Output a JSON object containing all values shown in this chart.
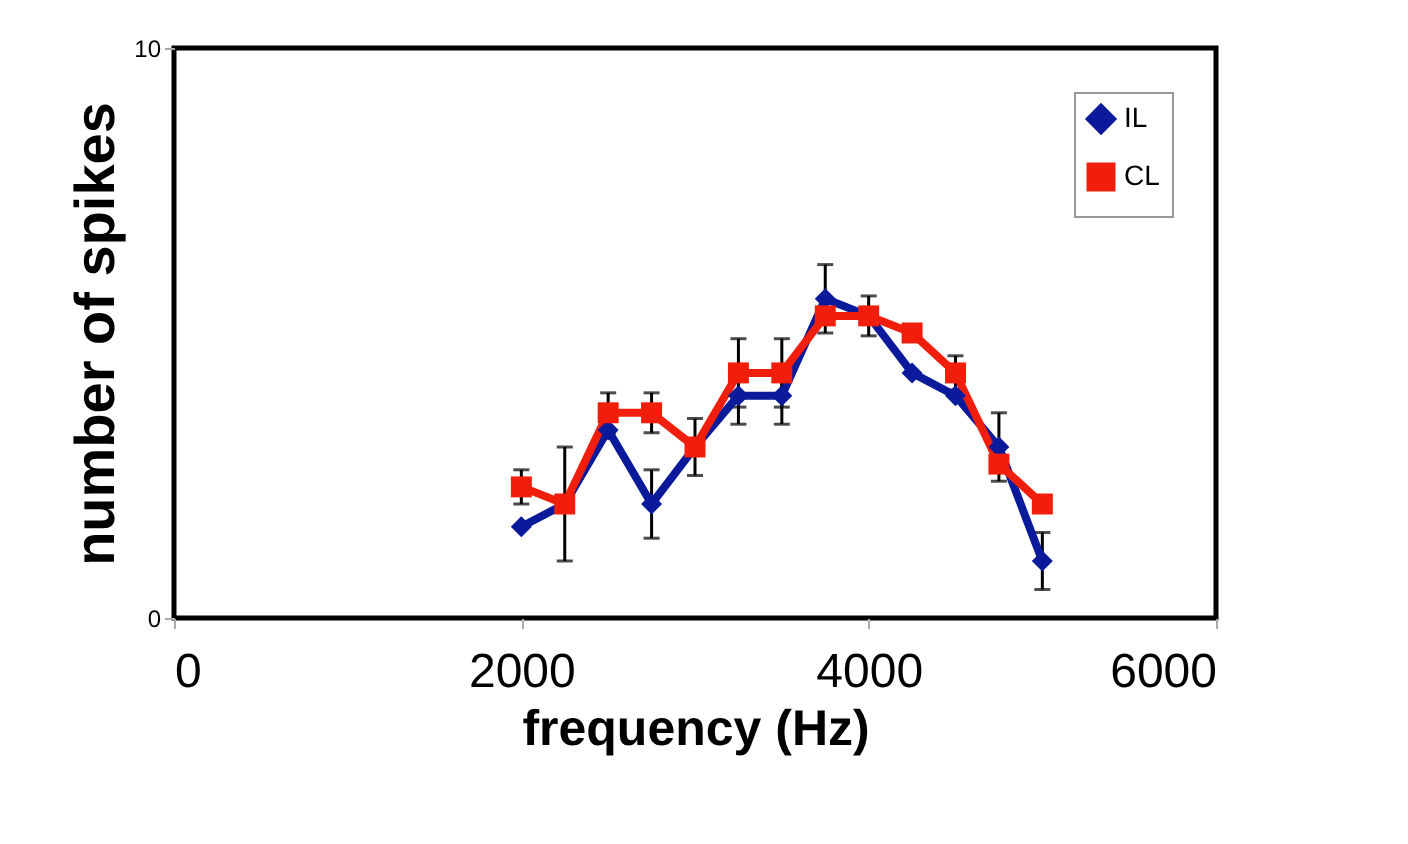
{
  "chart_data": {
    "type": "line",
    "xlabel": "frequency (Hz)",
    "ylabel": "number of spikes",
    "x": [
      2000,
      2250,
      2500,
      2750,
      3000,
      3250,
      3500,
      3750,
      4000,
      4250,
      4500,
      4750,
      5000
    ],
    "series": [
      {
        "name": "IL",
        "color": "#0a1a9a",
        "marker": "diamond",
        "values": [
          1.6,
          2.0,
          3.3,
          2.0,
          3.0,
          3.9,
          3.9,
          5.6,
          5.3,
          4.3,
          3.9,
          3.0,
          1.0
        ],
        "errors": [
          null,
          1.0,
          null,
          0.6,
          0.5,
          0.5,
          0.5,
          0.6,
          null,
          null,
          null,
          0.6,
          0.5
        ]
      },
      {
        "name": "CL",
        "color": "#f01e0a",
        "marker": "square",
        "values": [
          2.3,
          2.0,
          3.6,
          3.6,
          3.0,
          4.3,
          4.3,
          5.3,
          5.3,
          5.0,
          4.3,
          2.7,
          2.0
        ],
        "errors": [
          0.3,
          null,
          0.35,
          0.35,
          null,
          0.6,
          0.6,
          null,
          0.35,
          null,
          0.3,
          null,
          null
        ]
      }
    ],
    "xlim": [
      0,
      6000
    ],
    "xticks": [
      0,
      2000,
      4000,
      6000
    ],
    "ylim": [
      0,
      10
    ],
    "yticks": [
      0,
      10
    ],
    "grid": false,
    "legend": "top right",
    "line_style": "solid"
  }
}
